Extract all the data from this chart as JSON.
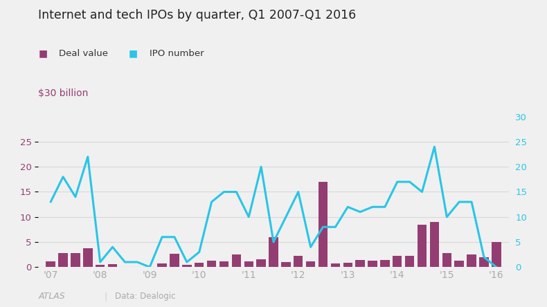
{
  "title": "Internet and tech IPOs by quarter, Q1 2007-Q1 2016",
  "ylabel_left": "$30 billion",
  "source": "Data: Dealogic",
  "atlas": "ATLAS",
  "bar_color": "#943d72",
  "line_color": "#29C5E6",
  "background_color": "#f0f0f0",
  "grid_color": "#d8d8d8",
  "deal_value": [
    1.2,
    2.8,
    2.8,
    3.7,
    0.5,
    0.6,
    0.1,
    0.1,
    0.1,
    0.7,
    2.6,
    0.5,
    0.8,
    1.3,
    1.1,
    2.5,
    1.2,
    1.5,
    6.0,
    1.0,
    2.3,
    1.2,
    17.0,
    0.7,
    0.8,
    1.4,
    1.3,
    1.4,
    2.2,
    2.2,
    8.5,
    9.0,
    2.8,
    1.3,
    2.5,
    2.0,
    5.0
  ],
  "ipo_number": [
    13,
    18,
    14,
    22,
    1,
    4,
    1,
    1,
    0,
    6,
    6,
    1,
    3,
    13,
    15,
    15,
    10,
    20,
    5,
    10,
    15,
    4,
    8,
    8,
    12,
    11,
    12,
    12,
    17,
    17,
    15,
    24,
    10,
    13,
    13,
    2,
    0
  ],
  "ytick_left": [
    0,
    5,
    10,
    15,
    20,
    25
  ],
  "ytick_right": [
    0,
    5,
    10,
    15,
    20,
    25,
    30
  ],
  "xtick_labels": [
    "'07",
    "'08",
    "'09",
    "'10",
    "'11",
    "'12",
    "'13",
    "'14",
    "'15",
    "'16"
  ],
  "xtick_positions": [
    0,
    4,
    8,
    12,
    16,
    20,
    24,
    28,
    32,
    36
  ]
}
